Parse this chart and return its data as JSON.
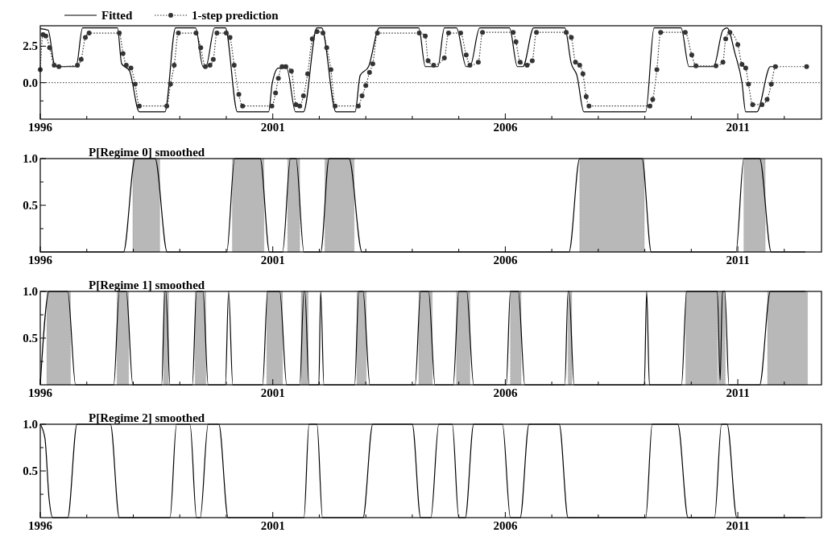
{
  "chart_data": [
    {
      "type": "line",
      "xlim": [
        1996,
        2012.8
      ],
      "xticks": [
        {
          "value": 1996,
          "label": "1996"
        },
        {
          "value": 2001,
          "label": "2001"
        },
        {
          "value": 2006,
          "label": "2006"
        },
        {
          "value": 2011,
          "label": "2011"
        },
        {
          "value": 1997,
          "label": null
        },
        {
          "value": 1998,
          "label": null
        },
        {
          "value": 1999,
          "label": null
        },
        {
          "value": 2000,
          "label": null
        },
        {
          "value": 2002,
          "label": null
        },
        {
          "value": 2003,
          "label": null
        },
        {
          "value": 2004,
          "label": null
        },
        {
          "value": 2005,
          "label": null
        },
        {
          "value": 2007,
          "label": null
        },
        {
          "value": 2008,
          "label": null
        },
        {
          "value": 2009,
          "label": null
        },
        {
          "value": 2010,
          "label": null
        },
        {
          "value": 2012,
          "label": null
        }
      ],
      "ylim": [
        -2.5,
        3.9
      ],
      "yticks": [
        {
          "value": -1.25,
          "label": null
        },
        {
          "value": 0,
          "label": "0.0"
        },
        {
          "value": 2.5,
          "label": "2.5"
        }
      ],
      "legend": "top left",
      "ref_lines": [
        {
          "axis": "y",
          "value": 0,
          "line_style": "dotted",
          "color": "#333333"
        }
      ],
      "series": [
        {
          "name": "Fitted",
          "color": "#000000",
          "line_style": "solid",
          "marker": "none",
          "x": [
            1996.0,
            1996.17,
            1996.3,
            1996.38,
            1996.77,
            1996.91,
            1997.66,
            1997.75,
            1997.92,
            1998.13,
            1998.68,
            1998.91,
            1999.34,
            1999.5,
            1999.56,
            1999.75,
            1999.98,
            2000.24,
            2000.91,
            2000.99,
            2001.12,
            2001.3,
            2001.49,
            2001.66,
            2001.95,
            2002.05,
            2002.36,
            2002.77,
            2002.88,
            2003.06,
            2003.29,
            2004.14,
            2004.28,
            2004.55,
            2004.69,
            2004.95,
            2005.16,
            2005.24,
            2005.45,
            2006.09,
            2006.26,
            2006.38,
            2006.61,
            2007.28,
            2007.42,
            2007.54,
            2007.69,
            2009.02,
            2009.2,
            2009.78,
            2009.95,
            2010.48,
            2010.68,
            2010.77,
            2010.94,
            2011.09,
            2011.17,
            2011.41,
            2011.7,
            2011.81
          ],
          "values": [
            3.7,
            3.6,
            1.3,
            1.1,
            1.1,
            3.75,
            3.75,
            1.3,
            0.8,
            -2.0,
            -2.0,
            3.75,
            3.75,
            1.1,
            1.1,
            3.75,
            3.75,
            -2.0,
            -2.0,
            0.0,
            1.0,
            1.0,
            -2.0,
            -2.0,
            3.75,
            3.75,
            -2.0,
            -2.0,
            0.5,
            1.1,
            3.75,
            3.75,
            1.1,
            1.1,
            3.75,
            3.75,
            1.1,
            1.1,
            3.75,
            3.75,
            1.1,
            1.1,
            3.75,
            3.75,
            1.3,
            0.5,
            -2.0,
            -2.0,
            3.75,
            3.75,
            1.1,
            1.1,
            3.6,
            3.75,
            2.0,
            0.0,
            -2.0,
            -2.0,
            1.1,
            1.1
          ]
        },
        {
          "name": "1-step prediction",
          "color": "#333333",
          "line_style": "dotted",
          "marker": "circle",
          "x": [
            1996.0,
            1996.06,
            1996.12,
            1996.2,
            1996.3,
            1996.4,
            1996.8,
            1996.88,
            1996.97,
            1997.05,
            1997.7,
            1997.78,
            1997.85,
            1997.95,
            1998.04,
            1998.13,
            1998.72,
            1998.8,
            1998.88,
            1998.97,
            1999.35,
            1999.45,
            1999.55,
            1999.65,
            1999.72,
            1999.8,
            2000.0,
            2000.08,
            2000.17,
            2000.27,
            2000.35,
            2000.98,
            2001.06,
            2001.12,
            2001.2,
            2001.28,
            2001.4,
            2001.5,
            2001.58,
            2001.66,
            2001.75,
            2001.85,
            2001.95,
            2002.08,
            2002.16,
            2002.25,
            2002.34,
            2002.84,
            2002.92,
            2003.0,
            2003.08,
            2003.15,
            2003.25,
            2004.15,
            2004.28,
            2004.34,
            2004.46,
            2004.69,
            2004.78,
            2005.04,
            2005.16,
            2005.24,
            2005.42,
            2005.51,
            2006.17,
            2006.23,
            2006.32,
            2006.47,
            2006.58,
            2006.67,
            2007.31,
            2007.42,
            2007.51,
            2007.6,
            2007.67,
            2007.74,
            2007.8,
            2009.11,
            2009.17,
            2009.26,
            2009.34,
            2009.87,
            2010.01,
            2010.1,
            2010.53,
            2010.68,
            2010.74,
            2010.83,
            2011.0,
            2011.09,
            2011.17,
            2011.23,
            2011.32,
            2011.52,
            2011.63,
            2011.72,
            2011.81,
            2012.48
          ],
          "values": [
            0.9,
            3.3,
            3.2,
            2.4,
            1.2,
            1.1,
            1.2,
            1.6,
            3.1,
            3.4,
            3.4,
            2.0,
            1.2,
            1.0,
            -0.1,
            -1.6,
            -1.6,
            -0.1,
            1.2,
            3.4,
            3.4,
            2.4,
            1.1,
            1.2,
            1.6,
            3.4,
            3.4,
            3.1,
            1.2,
            -0.8,
            -1.6,
            -1.6,
            -0.7,
            0.3,
            1.1,
            1.1,
            0.8,
            -1.5,
            -1.6,
            -0.9,
            0.6,
            3.0,
            3.5,
            3.4,
            2.4,
            0.9,
            -1.6,
            -1.6,
            -0.9,
            -0.2,
            0.7,
            1.3,
            3.4,
            3.4,
            3.2,
            1.5,
            1.2,
            1.7,
            3.4,
            3.4,
            1.9,
            1.2,
            1.4,
            3.45,
            3.45,
            2.8,
            1.4,
            1.2,
            1.5,
            3.45,
            3.45,
            3.1,
            1.4,
            1.2,
            0.6,
            -0.95,
            -1.6,
            -1.6,
            -1.15,
            0.9,
            3.45,
            3.45,
            1.9,
            1.15,
            1.15,
            1.4,
            3.0,
            3.45,
            2.6,
            1.25,
            1.0,
            -0.1,
            -1.5,
            -1.5,
            -1.15,
            -0.1,
            1.1,
            1.1
          ]
        }
      ]
    },
    {
      "type": "line",
      "title": "P[Regime 0] smoothed",
      "xlim": [
        1996,
        2012.8
      ],
      "xticks": [
        {
          "value": 1996,
          "label": "1996"
        },
        {
          "value": 2001,
          "label": "2001"
        },
        {
          "value": 2006,
          "label": "2006"
        },
        {
          "value": 2011,
          "label": "2011"
        },
        {
          "value": 1997,
          "label": null
        },
        {
          "value": 1998,
          "label": null
        },
        {
          "value": 1999,
          "label": null
        },
        {
          "value": 2000,
          "label": null
        },
        {
          "value": 2002,
          "label": null
        },
        {
          "value": 2003,
          "label": null
        },
        {
          "value": 2004,
          "label": null
        },
        {
          "value": 2005,
          "label": null
        },
        {
          "value": 2007,
          "label": null
        },
        {
          "value": 2008,
          "label": null
        },
        {
          "value": 2009,
          "label": null
        },
        {
          "value": 2010,
          "label": null
        },
        {
          "value": 2012,
          "label": null
        }
      ],
      "ylim": [
        0,
        1
      ],
      "yticks": [
        {
          "value": 0.25,
          "label": null
        },
        {
          "value": 0.5,
          "label": "0.5"
        },
        {
          "value": 0.75,
          "label": null
        },
        {
          "value": 1,
          "label": "1.0"
        }
      ],
      "bands": [
        {
          "axis": "x",
          "from": 1997.99,
          "to": 1998.57,
          "color": "#b8b8b8"
        },
        {
          "axis": "x",
          "from": 2000.13,
          "to": 2000.81,
          "color": "#b8b8b8"
        },
        {
          "axis": "x",
          "from": 2001.32,
          "to": 2001.58,
          "color": "#b8b8b8"
        },
        {
          "axis": "x",
          "from": 2002.12,
          "to": 2002.75,
          "color": "#b8b8b8"
        },
        {
          "axis": "x",
          "from": 2007.6,
          "to": 2008.99,
          "color": "#b8b8b8"
        },
        {
          "axis": "x",
          "from": 2011.13,
          "to": 2011.59,
          "color": "#b8b8b8"
        }
      ],
      "series": [
        {
          "color": "#000000",
          "x": [
            1996.0,
            1997.79,
            1998.04,
            1998.47,
            1998.73,
            2000.01,
            2000.18,
            2000.73,
            2000.93,
            2001.21,
            2001.38,
            2001.5,
            2001.67,
            2002.03,
            2002.21,
            2002.64,
            2002.92,
            2007.37,
            2007.6,
            2008.94,
            2009.14,
            2010.96,
            2011.13,
            2011.47,
            2011.72,
            2012.45
          ],
          "values": [
            0,
            0,
            1,
            1,
            0,
            0,
            1,
            1,
            0,
            0,
            1,
            1,
            0,
            0,
            1,
            1,
            0,
            0,
            1,
            1,
            0,
            0,
            1,
            1,
            0,
            0
          ]
        }
      ]
    },
    {
      "type": "line",
      "title": "P[Regime 1] smoothed",
      "xlim": [
        1996,
        2012.8
      ],
      "xticks": [
        {
          "value": 1996,
          "label": "1996"
        },
        {
          "value": 2001,
          "label": "2001"
        },
        {
          "value": 2006,
          "label": "2006"
        },
        {
          "value": 2011,
          "label": "2011"
        },
        {
          "value": 1997,
          "label": null
        },
        {
          "value": 1998,
          "label": null
        },
        {
          "value": 1999,
          "label": null
        },
        {
          "value": 2000,
          "label": null
        },
        {
          "value": 2002,
          "label": null
        },
        {
          "value": 2003,
          "label": null
        },
        {
          "value": 2004,
          "label": null
        },
        {
          "value": 2005,
          "label": null
        },
        {
          "value": 2007,
          "label": null
        },
        {
          "value": 2008,
          "label": null
        },
        {
          "value": 2009,
          "label": null
        },
        {
          "value": 2010,
          "label": null
        },
        {
          "value": 2012,
          "label": null
        }
      ],
      "ylim": [
        0,
        1
      ],
      "yticks": [
        {
          "value": 0.25,
          "label": null
        },
        {
          "value": 0.5,
          "label": "0.5"
        },
        {
          "value": 0.75,
          "label": null
        },
        {
          "value": 1,
          "label": "1.0"
        }
      ],
      "bands": [
        {
          "axis": "x",
          "from": 1996.14,
          "to": 1996.65,
          "color": "#b8b8b8"
        },
        {
          "axis": "x",
          "from": 1997.65,
          "to": 1997.9,
          "color": "#b8b8b8"
        },
        {
          "axis": "x",
          "from": 1998.65,
          "to": 1998.76,
          "color": "#b8b8b8"
        },
        {
          "axis": "x",
          "from": 1999.33,
          "to": 1999.56,
          "color": "#b8b8b8"
        },
        {
          "axis": "x",
          "from": 2000.87,
          "to": 2001.21,
          "color": "#b8b8b8"
        },
        {
          "axis": "x",
          "from": 2001.61,
          "to": 2001.76,
          "color": "#b8b8b8"
        },
        {
          "axis": "x",
          "from": 2002.81,
          "to": 2003.01,
          "color": "#b8b8b8"
        },
        {
          "axis": "x",
          "from": 2004.14,
          "to": 2004.43,
          "color": "#b8b8b8"
        },
        {
          "axis": "x",
          "from": 2004.95,
          "to": 2005.24,
          "color": "#b8b8b8"
        },
        {
          "axis": "x",
          "from": 2006.11,
          "to": 2006.34,
          "color": "#b8b8b8"
        },
        {
          "axis": "x",
          "from": 2007.35,
          "to": 2007.43,
          "color": "#b8b8b8"
        },
        {
          "axis": "x",
          "from": 2009.88,
          "to": 2010.56,
          "color": "#b8b8b8"
        },
        {
          "axis": "x",
          "from": 2010.58,
          "to": 2010.73,
          "color": "#b8b8b8"
        },
        {
          "axis": "x",
          "from": 2011.64,
          "to": 2012.5,
          "color": "#b8b8b8"
        }
      ],
      "series": [
        {
          "color": "#000000",
          "x": [
            1996.0,
            1996.19,
            1996.59,
            1996.76,
            1997.58,
            1997.7,
            1997.85,
            1997.99,
            1998.61,
            1998.68,
            1998.7,
            1998.79,
            1999.27,
            1999.36,
            1999.5,
            1999.61,
            1999.98,
            2000.05,
            2000.14,
            2000.78,
            2000.89,
            2001.15,
            2001.3,
            2001.58,
            2001.67,
            2001.69,
            2001.78,
            2001.99,
            2002.03,
            2002.1,
            2002.76,
            2002.85,
            2002.94,
            2003.09,
            2004.06,
            2004.18,
            2004.35,
            2004.49,
            2004.88,
            2005.0,
            2005.17,
            2005.32,
            2006.02,
            2006.11,
            2006.28,
            2006.42,
            2007.28,
            2007.35,
            2007.37,
            2007.48,
            2008.99,
            2009.04,
            2009.1,
            2009.79,
            2009.9,
            2010.47,
            2010.56,
            2010.62,
            2010.67,
            2010.72,
            2010.81,
            2011.47,
            2011.7,
            2012.45
          ],
          "values": [
            0,
            1,
            1,
            0,
            0,
            1,
            1,
            0,
            0,
            1,
            1,
            0,
            0,
            1,
            1,
            0,
            0,
            1,
            0,
            0,
            1,
            1,
            0,
            0,
            1,
            1,
            0,
            0,
            1,
            0,
            0,
            1,
            1,
            0,
            0,
            1,
            1,
            0,
            0,
            1,
            1,
            0,
            0,
            1,
            1,
            0,
            0,
            1,
            1,
            0,
            0,
            1,
            0,
            0,
            1,
            1,
            1,
            0.05,
            1,
            1,
            0,
            0,
            1,
            1
          ]
        }
      ]
    },
    {
      "type": "line",
      "title": "P[Regime 2] smoothed",
      "xlim": [
        1996,
        2012.8
      ],
      "xticks": [
        {
          "value": 1996,
          "label": "1996"
        },
        {
          "value": 2001,
          "label": "2001"
        },
        {
          "value": 2006,
          "label": "2006"
        },
        {
          "value": 2011,
          "label": "2011"
        },
        {
          "value": 1997,
          "label": null
        },
        {
          "value": 1998,
          "label": null
        },
        {
          "value": 1999,
          "label": null
        },
        {
          "value": 2000,
          "label": null
        },
        {
          "value": 2002,
          "label": null
        },
        {
          "value": 2003,
          "label": null
        },
        {
          "value": 2004,
          "label": null
        },
        {
          "value": 2005,
          "label": null
        },
        {
          "value": 2007,
          "label": null
        },
        {
          "value": 2008,
          "label": null
        },
        {
          "value": 2009,
          "label": null
        },
        {
          "value": 2010,
          "label": null
        },
        {
          "value": 2012,
          "label": null
        }
      ],
      "ylim": [
        0,
        1
      ],
      "yticks": [
        {
          "value": 0.25,
          "label": null
        },
        {
          "value": 0.5,
          "label": "0.5"
        },
        {
          "value": 0.75,
          "label": null
        },
        {
          "value": 1,
          "label": "1.0"
        }
      ],
      "series": [
        {
          "color": "#000000",
          "x": [
            1996.0,
            1996.1,
            1996.19,
            1996.27,
            1996.59,
            1996.79,
            1997.51,
            1997.7,
            1998.79,
            1998.93,
            1999.22,
            1999.36,
            1999.44,
            1999.61,
            1999.84,
            2000.04,
            2001.67,
            2001.78,
            2001.95,
            2002.07,
            2002.94,
            2003.15,
            2004.0,
            2004.18,
            2004.4,
            2004.57,
            2004.86,
            2005.0,
            2005.14,
            2005.32,
            2005.94,
            2006.11,
            2006.32,
            2006.51,
            2007.16,
            2007.35,
            2009.02,
            2009.16,
            2009.71,
            2009.93,
            2010.5,
            2010.65,
            2010.77,
            2010.98,
            2012.45
          ],
          "values": [
            1,
            0.85,
            0.2,
            0,
            0,
            1,
            1,
            0,
            0,
            1,
            1,
            0,
            0,
            1,
            1,
            0,
            0,
            1,
            1,
            0,
            0,
            1,
            1,
            0,
            0,
            1,
            1,
            0,
            0,
            1,
            1,
            0,
            0,
            1,
            1,
            0,
            0,
            1,
            1,
            0,
            0,
            1,
            1,
            0,
            0
          ]
        }
      ]
    }
  ]
}
